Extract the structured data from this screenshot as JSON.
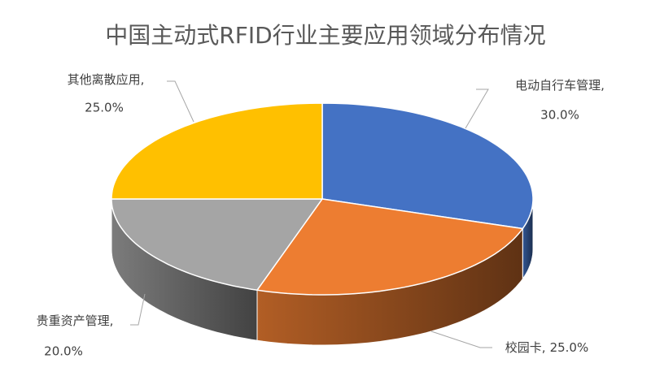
{
  "chart_data": {
    "type": "pie3d",
    "title": "中国主动式RFID行业主要应用领域分布情况",
    "categories": [
      "电动自行车管理",
      "校园卡",
      "贵重资产管理",
      "其他离散应用"
    ],
    "values": [
      30,
      25,
      20,
      25
    ],
    "value_labels": [
      "30.0%",
      "25.0%",
      "20.0%",
      "25.0%"
    ],
    "label_separator": ",",
    "colors": [
      "#4472c4",
      "#ed7d31",
      "#a5a5a5",
      "#ffc000"
    ]
  }
}
